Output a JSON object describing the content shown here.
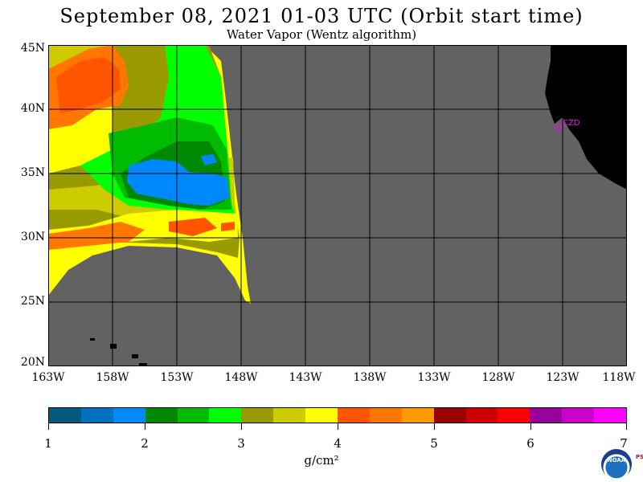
{
  "title": "September 08, 2021  01-03 UTC  (Orbit start time)",
  "subtitle": "Water Vapor (Wentz algorithm)",
  "map": {
    "lat_labels": [
      "45N",
      "40N",
      "35N",
      "30N",
      "25N",
      "20N"
    ],
    "lon_labels": [
      "163W",
      "158W",
      "153W",
      "148W",
      "143W",
      "138W",
      "133W",
      "128W",
      "123W",
      "118W"
    ],
    "station_label": "CZD",
    "colors": {
      "no_data": "#626262",
      "land": "#000000",
      "station": "#ff00ff"
    }
  },
  "colorbar": {
    "colors": [
      "#005a7a",
      "#0070c0",
      "#0088ff",
      "#008800",
      "#00bb00",
      "#00ff00",
      "#999900",
      "#cccc00",
      "#ffff00",
      "#ff5500",
      "#ff7700",
      "#ff9900",
      "#990000",
      "#cc0000",
      "#ff0000",
      "#990099",
      "#cc00cc",
      "#ff00ff"
    ],
    "tick_labels": [
      "1",
      "2",
      "3",
      "4",
      "5",
      "6",
      "7"
    ],
    "units": "g/cm²"
  },
  "logo": {
    "text": "NOAA",
    "side_text": "PSL"
  }
}
